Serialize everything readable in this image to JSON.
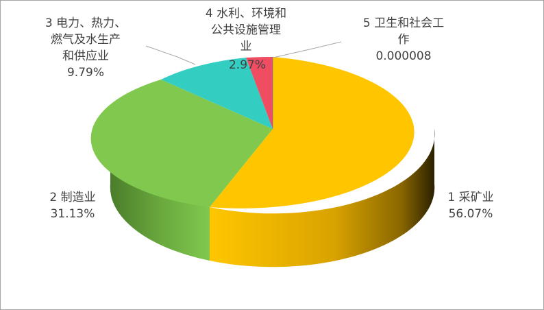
{
  "chart_data": {
    "type": "pie",
    "style": "3d",
    "slices": [
      {
        "category_lines": [
          "1 采矿业"
        ],
        "value_label": "56.07%",
        "value": 56.07,
        "color": "#ffc000"
      },
      {
        "category_lines": [
          "2 制造业"
        ],
        "value_label": "31.13%",
        "value": 31.13,
        "color": "#7ec64c"
      },
      {
        "category_lines": [
          "3 电力、热力、",
          "燃气及水生产",
          "和供应业"
        ],
        "value_label": "9.79%",
        "value": 9.79,
        "color": "#33cdc1"
      },
      {
        "category_lines": [
          "4 水利、环境和",
          "公共设施管理",
          "业"
        ],
        "value_label": "2.97%",
        "value": 2.97,
        "color": "#f04d63"
      },
      {
        "category_lines": [
          "5 卫生和社会工",
          "作"
        ],
        "value_label": "0.000008",
        "value": 8e-06,
        "color": "#4472c4"
      }
    ]
  }
}
